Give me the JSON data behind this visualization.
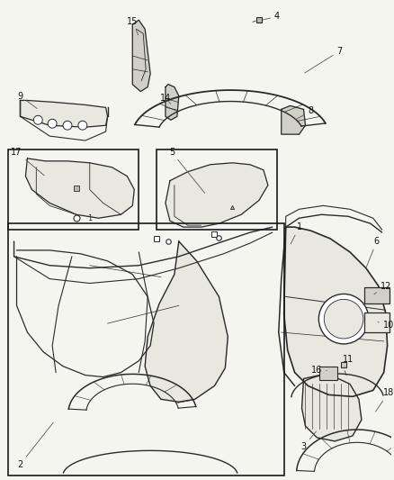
{
  "bg_color": "#f5f5f0",
  "fig_width": 4.38,
  "fig_height": 5.33,
  "dpi": 100,
  "line_color": "#2a2a2a",
  "label_fontsize": 7.0,
  "label_color": "#111111",
  "box_color": "#1a1a1a",
  "fill_light": "#e8e8e0",
  "fill_mid": "#d0d0c8",
  "fill_dark": "#b8b8b0"
}
